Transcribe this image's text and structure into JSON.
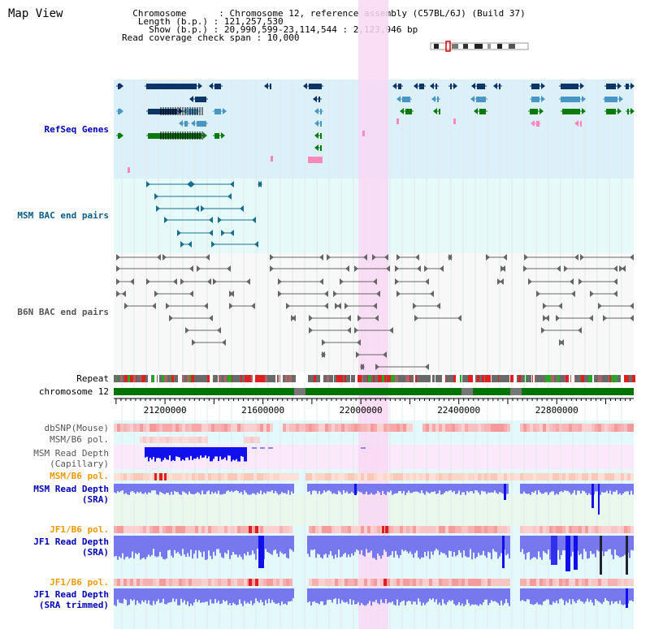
{
  "title": "Map View",
  "info": {
    "chromosome": "  Chromosome      : Chromosome 12, reference assembly (C57BL/6J) (Build 37)",
    "length": "   Length (b.p.) : 121,257,530",
    "show": "     Show (b.p.) : 20,990,599-23,114,544 : 2,123,946 bp",
    "span": "Read coverage check span : 10,000"
  },
  "tracks": {
    "refseq": "RefSeq Genes",
    "msm_bac": "MSM BAC end pairs",
    "b6n_bac": "B6N BAC end pairs",
    "repeat": "Repeat",
    "chromosome": "chromosome 12",
    "dbsnp": "dbSNP(Mouse)",
    "msm_b6_pol_1": "MSM/B6 pol.",
    "msm_read_cap_1": "MSM Read Depth",
    "msm_read_cap_2": "(Capillary)",
    "msm_b6_pol_2": "MSM/B6 pol.",
    "msm_read_sra_1": "MSM Read Depth",
    "msm_read_sra_2": "(SRA)",
    "jf1_b6_pol_1": "JF1/B6 pol.",
    "jf1_read_sra_1": "JF1 Read Depth",
    "jf1_read_sra_2": "(SRA)",
    "jf1_b6_pol_2": "JF1/B6 pol.",
    "jf1_read_trim_1": "JF1 Read Depth",
    "jf1_read_trim_2": "(SRA trimmed)"
  },
  "axis": {
    "ticks": [
      21200000,
      21600000,
      22000000,
      22400000,
      22800000
    ],
    "labels": [
      "21200000",
      "21600000",
      "22000000",
      "22400000",
      "22800000"
    ],
    "start": 20990599,
    "end": 23114544
  },
  "colors": {
    "refseq_bg": "#dcf0fa",
    "bac_bg": "#e6fafa",
    "highlight": "#f8d8f4",
    "navy": "#0c3466",
    "steel": "#4796c3",
    "green": "#0a7a0a",
    "pink": "#ff88bb",
    "bac_line": "#1a6e8e",
    "gray": "#666666",
    "chrom_green": "#007400",
    "depth_blue": "#1010ee",
    "depth_light": "#7777ee",
    "label_blue": "#0000b4",
    "label_teal": "#0a5c82",
    "label_orange": "#ee9900"
  }
}
